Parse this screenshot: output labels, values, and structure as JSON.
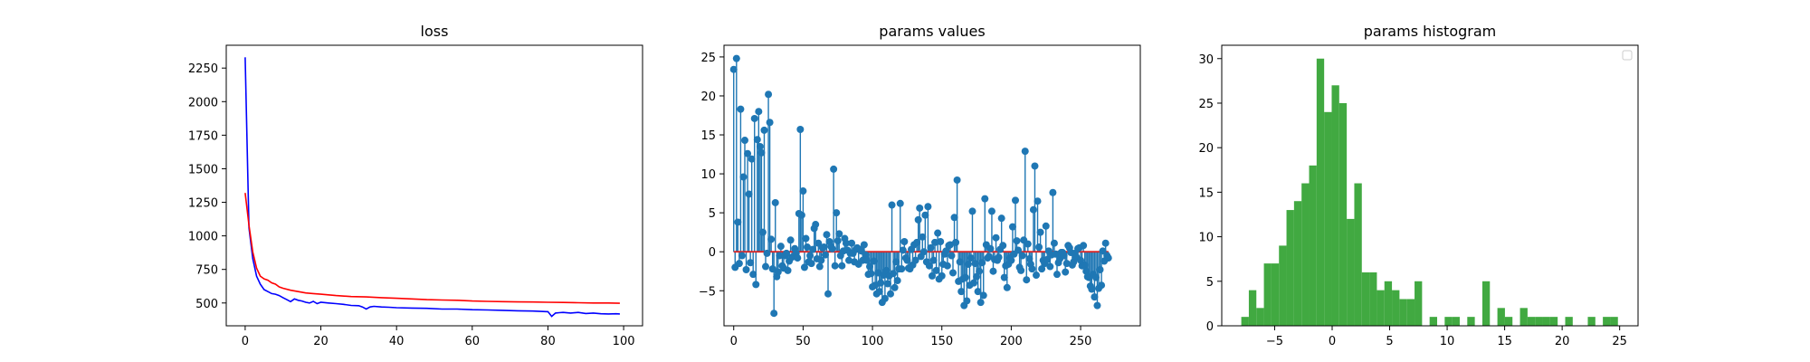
{
  "chart_data": [
    {
      "type": "line",
      "title": "loss",
      "xlabel": "",
      "ylabel": "",
      "xlim": [
        -5,
        105
      ],
      "ylim": [
        330,
        2420
      ],
      "xticks": [
        0,
        20,
        40,
        60,
        80,
        100
      ],
      "yticks": [
        500,
        750,
        1000,
        1250,
        1500,
        1750,
        2000,
        2250
      ],
      "grid": false,
      "series": [
        {
          "color": "#0000ff",
          "x": [
            0,
            1,
            2,
            3,
            4,
            5,
            6,
            7,
            8,
            9,
            10,
            11,
            12,
            13,
            14,
            15,
            16,
            17,
            18,
            19,
            20,
            22,
            24,
            26,
            28,
            30,
            31,
            32,
            33,
            34,
            36,
            38,
            40,
            44,
            48,
            52,
            56,
            60,
            64,
            68,
            72,
            76,
            80,
            81,
            82,
            83,
            84,
            86,
            88,
            90,
            92,
            94,
            96,
            98,
            99
          ],
          "values": [
            2330,
            1060,
            830,
            700,
            640,
            600,
            585,
            570,
            565,
            555,
            540,
            525,
            510,
            530,
            520,
            515,
            505,
            500,
            512,
            495,
            505,
            500,
            495,
            490,
            482,
            480,
            470,
            455,
            470,
            475,
            470,
            468,
            465,
            462,
            460,
            455,
            455,
            450,
            448,
            445,
            442,
            440,
            435,
            400,
            425,
            428,
            430,
            425,
            430,
            422,
            425,
            420,
            418,
            420,
            418
          ]
        },
        {
          "color": "#ff0000",
          "x": [
            0,
            1,
            2,
            3,
            4,
            5,
            6,
            7,
            8,
            9,
            10,
            12,
            14,
            16,
            18,
            20,
            24,
            28,
            32,
            36,
            40,
            44,
            48,
            52,
            56,
            60,
            64,
            68,
            72,
            76,
            80,
            84,
            88,
            92,
            96,
            99
          ],
          "values": [
            1320,
            1080,
            880,
            760,
            700,
            680,
            670,
            650,
            640,
            620,
            610,
            595,
            585,
            575,
            570,
            565,
            555,
            548,
            545,
            540,
            535,
            530,
            525,
            522,
            520,
            515,
            512,
            510,
            508,
            507,
            505,
            504,
            502,
            500,
            500,
            498
          ]
        }
      ]
    },
    {
      "type": "stem",
      "title": "params values",
      "xlabel": "",
      "ylabel": "",
      "xlim": [
        -7,
        293
      ],
      "ylim": [
        -9.5,
        26.5
      ],
      "xticks": [
        0,
        50,
        100,
        150,
        200,
        250
      ],
      "yticks": [
        -5,
        0,
        5,
        10,
        15,
        20,
        25
      ],
      "grid": false,
      "marker_color": "#1f77b4",
      "baseline_color": "#d62728",
      "values": [
        23.4,
        -2,
        24.8,
        3.8,
        -1.5,
        18.3,
        -0.5,
        9.6,
        14.3,
        -2.3,
        12.6,
        7.4,
        -1.4,
        11.9,
        -2.9,
        17.1,
        -4.2,
        14.4,
        18,
        13.5,
        12.7,
        2.5,
        15.6,
        -1.9,
        -0.2,
        20.2,
        16.6,
        1.6,
        -2.2,
        -7.9,
        6.3,
        -3.2,
        -2.6,
        -0.5,
        0.7,
        -1.8,
        -2.1,
        -0.5,
        -0.2,
        -2.4,
        -1.2,
        1.5,
        -0.7,
        -0.6,
        0.4,
        -0.2,
        -0.8,
        4.9,
        15.7,
        4.7,
        7.8,
        -2,
        1.7,
        0.6,
        -1.3,
        -0.5,
        -1.5,
        0.3,
        3,
        3.5,
        -0.9,
        1.1,
        -1.9,
        -1.1,
        0.5,
        0.6,
        -0.4,
        2.2,
        -5.4,
        1.3,
        0.7,
        0.4,
        10.6,
        -1.8,
        5,
        1.4,
        2.3,
        -0.5,
        -1.8,
        0.1,
        1.7,
        1.1,
        0.2,
        -1.1,
        -0.2,
        1.1,
        -0.2,
        -1.3,
        0.3,
        0.5,
        -1.6,
        0.3,
        0.1,
        -1.1,
        0.9,
        -0.4,
        -1.1,
        -2.9,
        -1.9,
        -2.8,
        -4.5,
        -1.2,
        -4.3,
        -5.4,
        -2.7,
        -5.1,
        -4,
        -6.5,
        -3,
        -6,
        -2.4,
        -4.1,
        -3.1,
        -5.4,
        6,
        -2.8,
        -4.6,
        -1.3,
        -3.7,
        -2.2,
        6.2,
        -2.2,
        0.2,
        1.3,
        -0.8,
        -1.1,
        -2.1,
        -2.2,
        0.3,
        -1.7,
        0.9,
        -1.1,
        1.2,
        4.1,
        5.6,
        -0.6,
        1.9,
        0,
        4.7,
        -1.3,
        5.8,
        -1.8,
        0.5,
        -3.1,
        -1.1,
        1.2,
        -2.4,
        2.4,
        -3.5,
        1.3,
        -3.1,
        -1.6,
        -0.3,
        0.1,
        -1.8,
        0.8,
        0.9,
        -0.5,
        -2.7,
        4.4,
        1.2,
        9.2,
        -3.8,
        -1.3,
        -5.1,
        -3.5,
        -6.9,
        -3.3,
        -6.3,
        -1.6,
        -4.3,
        -0.8,
        5.2,
        -4,
        -1.5,
        -3.2,
        -5.1,
        -2.5,
        -6.5,
        -1.4,
        -5.6,
        6.8,
        0.9,
        -0.8,
        -0.6,
        0.4,
        5.2,
        -2.5,
        -1,
        1.8,
        -1.1,
        -0.7,
        0.3,
        4.3,
        0.8,
        -3.3,
        -1.8,
        -4.6,
        -1.6,
        -0.8,
        -1.1,
        3.2,
        -0.3,
        6.6,
        1.4,
        0.2,
        -2,
        -2.4,
        -0.5,
        1.5,
        12.9,
        -3.6,
        1,
        -0.9,
        -1.6,
        -2.2,
        5.4,
        11,
        -3,
        6.5,
        0.6,
        2.5,
        -2.2,
        -1.1,
        -1.5,
        3.3,
        -1,
        0.1,
        -1.9,
        -0.4,
        7.6,
        1.1,
        -0.3,
        -2.9,
        -1.4,
        -0.9,
        -0.1,
        -0.1,
        -0.5,
        -2.6,
        -1.5,
        0.8,
        0.5,
        -0.1,
        -1.7,
        -1.3,
        -0.2,
        -0.7,
        0.4,
        0.5,
        -1.1,
        -1.8,
        0.8,
        -1.7,
        -2.5,
        -3.2,
        -3.3,
        -4.4,
        -4.8,
        -2.9,
        -5.8,
        -3.3,
        -6.9,
        -4.7,
        -2.3,
        -4.3,
        0.1,
        -1.2,
        1.1,
        -0.5,
        -0.8
      ]
    },
    {
      "type": "histogram",
      "title": "params histogram",
      "xlabel": "",
      "ylabel": "",
      "xlim": [
        -9.6,
        26.6
      ],
      "ylim": [
        0,
        31.5
      ],
      "xticks": [
        -5,
        0,
        5,
        10,
        15,
        20,
        25
      ],
      "yticks": [
        0,
        5,
        10,
        15,
        20,
        25,
        30
      ],
      "grid": false,
      "legend": "top-right",
      "bar_color": "#2ca02c",
      "bin_start": -7.9,
      "bin_width": 0.655,
      "counts": [
        1,
        4,
        2,
        7,
        7,
        9,
        13,
        14,
        16,
        18,
        30,
        24,
        27,
        25,
        12,
        16,
        6,
        6,
        4,
        5,
        4,
        3,
        3,
        5,
        0,
        1,
        0,
        1,
        1,
        0,
        1,
        0,
        5,
        0,
        2,
        1,
        0,
        2,
        1,
        1,
        1,
        1,
        0,
        1,
        0,
        0,
        1,
        0,
        1,
        1
      ]
    }
  ]
}
